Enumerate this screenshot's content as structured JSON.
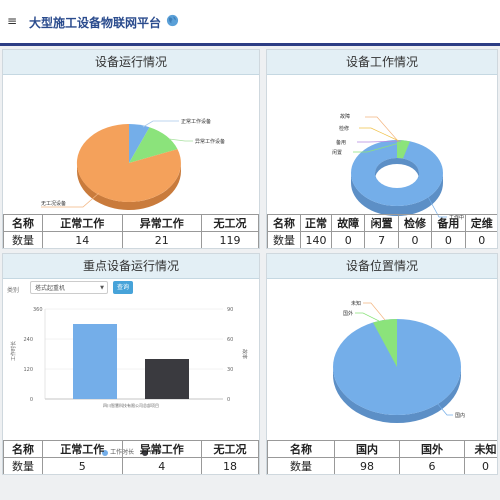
{
  "header": {
    "menu_icon": "menu-icon",
    "title": "大型施工设备物联网平台",
    "globe_icon": "globe-icon"
  },
  "panels": {
    "running": {
      "title": "设备运行情况",
      "chart_data": {
        "type": "pie",
        "slices": [
          {
            "label": "正常工作设备",
            "value": 14,
            "color": "#74aee9"
          },
          {
            "label": "异常工作设备",
            "value": 21,
            "color": "#8be37b"
          },
          {
            "label": "无工况设备",
            "value": 119,
            "color": "#f4a15b"
          }
        ]
      },
      "table": {
        "headers": [
          "名称",
          "正常工作",
          "异常工作",
          "无工况"
        ],
        "row_label": "数量",
        "values": [
          "14",
          "21",
          "119"
        ]
      }
    },
    "work": {
      "title": "设备工作情况",
      "chart_data": {
        "type": "pie",
        "variant": "donut",
        "slices": [
          {
            "label": "故障",
            "value": 0,
            "color": "#f4a15b"
          },
          {
            "label": "检修",
            "value": 0,
            "color": "#f0c24a"
          },
          {
            "label": "备用",
            "value": 0,
            "color": "#b388e0"
          },
          {
            "label": "闲置",
            "value": 7,
            "color": "#8be37b"
          },
          {
            "label": "工作中",
            "value": 140,
            "color": "#74aee9"
          }
        ]
      },
      "table": {
        "headers": [
          "名称",
          "正常",
          "故障",
          "闲置",
          "检修",
          "备用",
          "定维"
        ],
        "row_label": "数量",
        "values": [
          "140",
          "0",
          "7",
          "0",
          "0",
          "0"
        ]
      }
    },
    "key": {
      "title": "重点设备运行情况",
      "filter": {
        "label": "类别",
        "selected": "塔式起重机",
        "button": "查询"
      },
      "chart_data": {
        "type": "bar",
        "categories": [
          "四川智慧科技有限公司总部项目"
        ],
        "series": [
          {
            "name": "工作时长",
            "values": [
              300
            ],
            "axis": "left",
            "color": "#74aee9"
          },
          {
            "name": "故率",
            "values": [
              40
            ],
            "axis": "right",
            "color": "#3a3a3f"
          }
        ],
        "left_axis": {
          "label": "工作时长",
          "ticks": [
            "0",
            "120",
            "240",
            "360"
          ],
          "range": [
            0,
            360
          ]
        },
        "right_axis": {
          "label": "故率",
          "ticks": [
            "0",
            "30",
            "60",
            "90"
          ],
          "range": [
            0,
            90
          ]
        },
        "legend": "bottom"
      },
      "table": {
        "headers": [
          "名称",
          "正常工作",
          "异常工作",
          "无工况"
        ],
        "row_label": "数量",
        "values": [
          "5",
          "4",
          "18"
        ]
      }
    },
    "location": {
      "title": "设备位置情况",
      "chart_data": {
        "type": "pie",
        "slices": [
          {
            "label": "未知",
            "value": 0,
            "color": "#f4a15b"
          },
          {
            "label": "国外",
            "value": 6,
            "color": "#8be37b"
          },
          {
            "label": "国内",
            "value": 98,
            "color": "#74aee9"
          }
        ]
      },
      "table": {
        "headers": [
          "名称",
          "国内",
          "国外",
          "未知"
        ],
        "row_label": "数量",
        "values": [
          "98",
          "6",
          "0"
        ]
      }
    }
  }
}
